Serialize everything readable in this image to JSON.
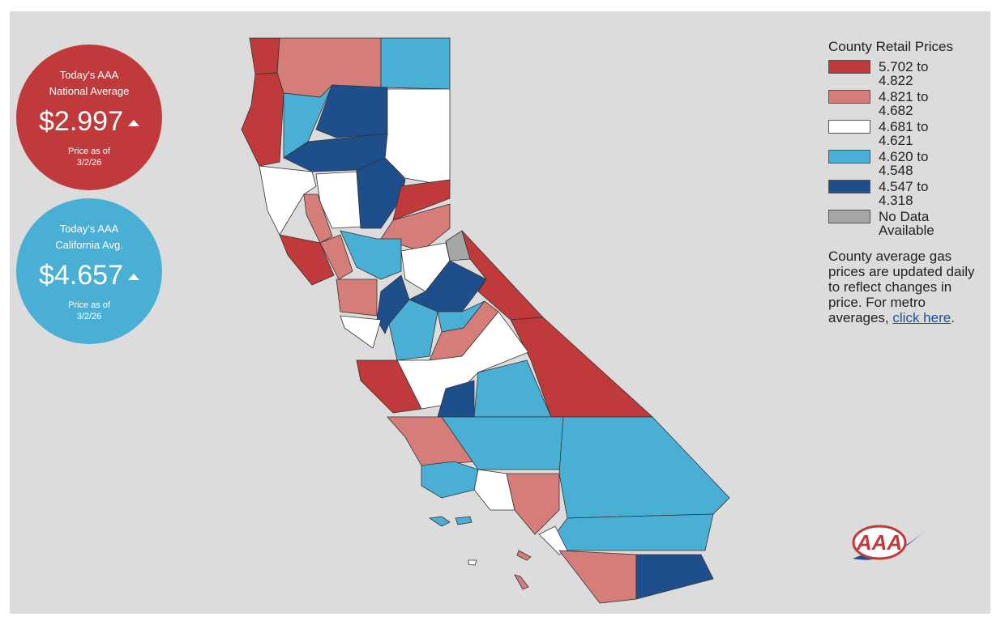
{
  "national": {
    "line1": "Today's AAA",
    "line2": "National Average",
    "price": "$2.997",
    "asof": "Price as of",
    "date": "3/2/26",
    "color": "#c0393b"
  },
  "california": {
    "line1": "Today's AAA",
    "line2": "California Avg.",
    "price": "$4.657",
    "asof": "Price as of",
    "date": "3/2/26",
    "color": "#4aafd5"
  },
  "legend": {
    "title": "County Retail Prices",
    "items": [
      {
        "label": "5.702 to 4.822",
        "color": "#c0393b"
      },
      {
        "label": "4.821 to 4.682",
        "color": "#d47d79"
      },
      {
        "label": "4.681 to 4.621",
        "color": "#ffffff"
      },
      {
        "label": "4.620 to 4.548",
        "color": "#4aafd5"
      },
      {
        "label": "4.547 to 4.318",
        "color": "#1f4e8c"
      },
      {
        "label": "No Data Available",
        "color": "#a6a6a6"
      }
    ]
  },
  "note": {
    "text": "County average gas prices are updated daily to reflect changes in price. For metro averages,",
    "link": "click here",
    "end": "."
  },
  "logo": "AAA"
}
